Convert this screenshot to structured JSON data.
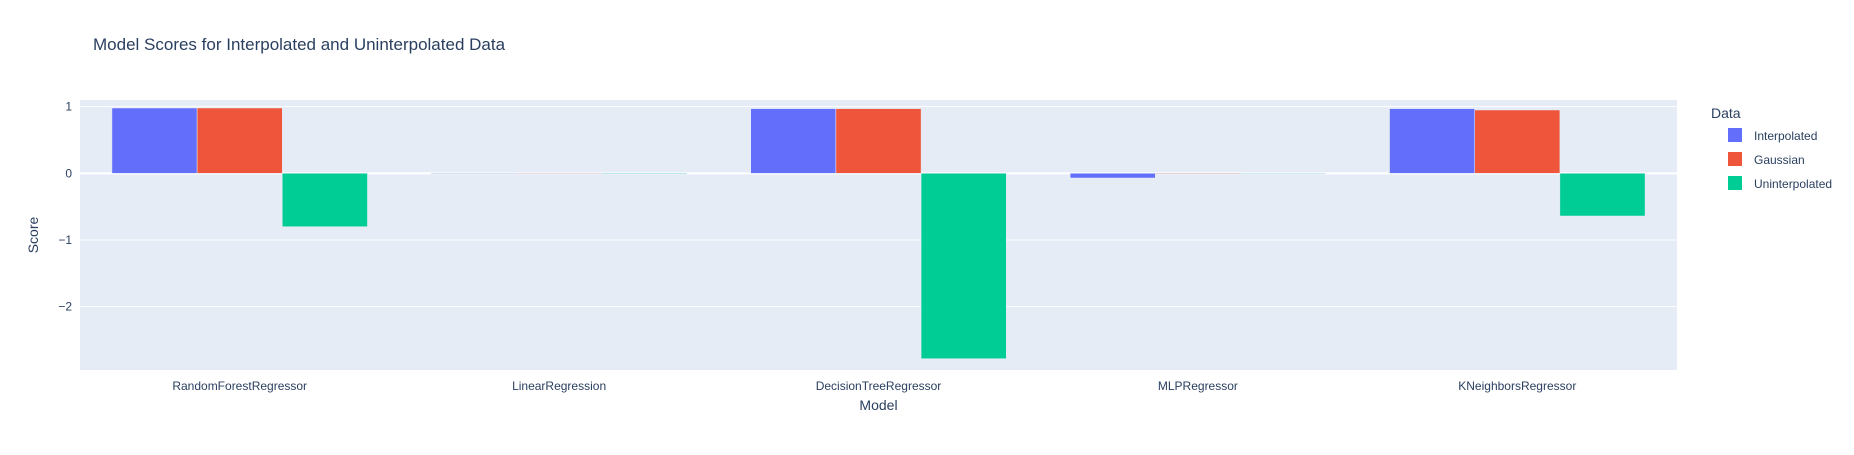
{
  "chart_data": {
    "type": "bar",
    "title": "Model Scores for Interpolated and Uninterpolated Data",
    "xlabel": "Model",
    "ylabel": "Score",
    "categories": [
      "RandomForestRegressor",
      "LinearRegression",
      "DecisionTreeRegressor",
      "MLPRegressor",
      "KNeighborsRegressor"
    ],
    "series": [
      {
        "name": "Interpolated",
        "color": "#636efa",
        "values": [
          0.98,
          0.0,
          0.97,
          -0.07,
          0.97
        ]
      },
      {
        "name": "Gaussian",
        "color": "#ef553b",
        "values": [
          0.98,
          0.0,
          0.97,
          -0.01,
          0.95
        ]
      },
      {
        "name": "Uninterpolated",
        "color": "#00cc96",
        "values": [
          -0.8,
          -0.01,
          -2.78,
          0.0,
          -0.64
        ]
      }
    ],
    "ylim": [
      -2.95,
      1.1
    ],
    "yticks": [
      1,
      0,
      -1,
      -2
    ],
    "ytick_labels": [
      "1",
      "0",
      "−1",
      "−2"
    ],
    "legend_title": "Data",
    "legend_position": "right",
    "grid": true,
    "plot_bgcolor": "#e5ecf6",
    "gridcolor": "#ffffff"
  }
}
